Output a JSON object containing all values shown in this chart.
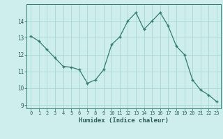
{
  "x": [
    0,
    1,
    2,
    3,
    4,
    5,
    6,
    7,
    8,
    9,
    10,
    11,
    12,
    13,
    14,
    15,
    16,
    17,
    18,
    19,
    20,
    21,
    22,
    23
  ],
  "y": [
    13.1,
    12.8,
    12.3,
    11.8,
    11.3,
    11.25,
    11.1,
    10.3,
    10.5,
    11.1,
    12.6,
    13.05,
    14.0,
    14.5,
    13.5,
    14.0,
    14.5,
    13.7,
    12.5,
    12.0,
    10.5,
    9.9,
    9.6,
    9.2
  ],
  "xlabel": "Humidex (Indice chaleur)",
  "ylim": [
    8.8,
    15.0
  ],
  "xlim": [
    -0.5,
    23.5
  ],
  "yticks": [
    9,
    10,
    11,
    12,
    13,
    14
  ],
  "xticks": [
    0,
    1,
    2,
    3,
    4,
    5,
    6,
    7,
    8,
    9,
    10,
    11,
    12,
    13,
    14,
    15,
    16,
    17,
    18,
    19,
    20,
    21,
    22,
    23
  ],
  "line_color": "#2e7d6e",
  "marker": "+",
  "bg_color": "#ceeeed",
  "grid_color": "#a8d8d4",
  "tick_label_color": "#2e5f5a",
  "xlabel_color": "#2e5f5a",
  "font_family": "monospace"
}
